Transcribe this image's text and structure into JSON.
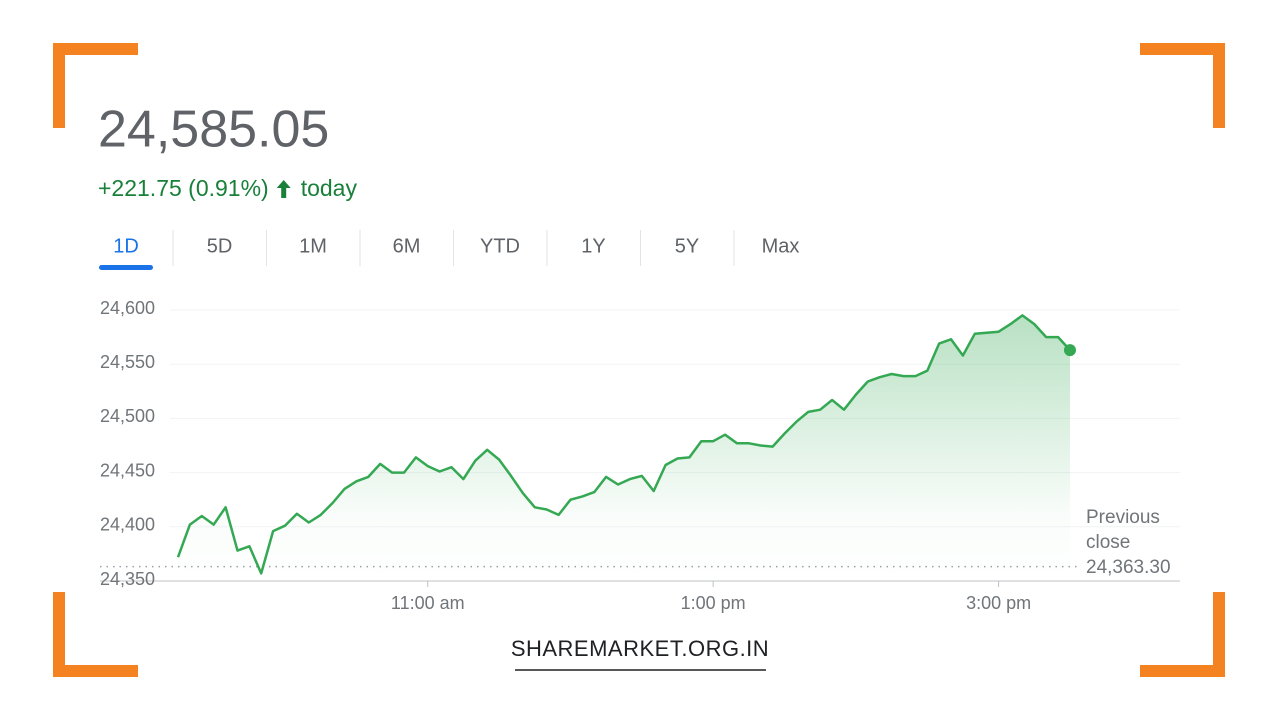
{
  "quote": {
    "price": "24,585.05",
    "change": "+221.75 (0.91%)",
    "period_label": "today"
  },
  "tabs": {
    "items": [
      "1D",
      "5D",
      "1M",
      "6M",
      "YTD",
      "1Y",
      "5Y",
      "Max"
    ],
    "active": 0
  },
  "chart_data": {
    "type": "line",
    "x": [
      9.25,
      9.3333,
      9.4167,
      9.5,
      9.5833,
      9.6667,
      9.75,
      9.8333,
      9.9167,
      10,
      10.0833,
      10.1667,
      10.25,
      10.3333,
      10.4167,
      10.5,
      10.5833,
      10.6667,
      10.75,
      10.8333,
      10.9167,
      11,
      11.0833,
      11.1667,
      11.25,
      11.3333,
      11.4167,
      11.5,
      11.5833,
      11.6667,
      11.75,
      11.8333,
      11.9167,
      12,
      12.0833,
      12.1667,
      12.25,
      12.3333,
      12.4167,
      12.5,
      12.5833,
      12.6667,
      12.75,
      12.8333,
      12.9167,
      13,
      13.0833,
      13.1667,
      13.25,
      13.3333,
      13.4167,
      13.5,
      13.5833,
      13.6667,
      13.75,
      13.8333,
      13.9167,
      14,
      14.0833,
      14.1667,
      14.25,
      14.3333,
      14.4167,
      14.5,
      14.5833,
      14.6667,
      14.75,
      14.8333,
      14.9167,
      15,
      15.0833,
      15.1667,
      15.25,
      15.3333,
      15.4167,
      15.5
    ],
    "series": [
      {
        "color": "#34a853",
        "values": [
          24372,
          24402,
          24410,
          24402,
          24418,
          24378,
          24382,
          24357,
          24396,
          24401,
          24412,
          24404,
          24411,
          24422,
          24435,
          24442,
          24446,
          24458,
          24450,
          24450,
          24464,
          24456,
          24451,
          24455,
          24444,
          24461,
          24471,
          24462,
          24447,
          24431,
          24418,
          24416,
          24411,
          24425,
          24428,
          24432,
          24446,
          24439,
          24444,
          24447,
          24433,
          24457,
          24463,
          24464,
          24479,
          24479,
          24485,
          24477,
          24477,
          24475,
          24474,
          24486,
          24497,
          24506,
          24508,
          24517,
          24508,
          24522,
          24534,
          24538,
          24541,
          24539,
          24539,
          24544,
          24569,
          24573,
          24558,
          24578,
          24579,
          24580,
          24587,
          24595,
          24587,
          24575,
          24575,
          24563
        ]
      }
    ],
    "xlim": [
      9.25,
      16.25
    ],
    "xticks": [
      {
        "value": 11,
        "label": "11:00 am"
      },
      {
        "value": 13,
        "label": "1:00 pm"
      },
      {
        "value": 15,
        "label": "3:00 pm"
      }
    ],
    "ylim": [
      24350,
      24600
    ],
    "yticks": [
      {
        "value": 24350,
        "label": "24,350"
      },
      {
        "value": 24400,
        "label": "24,400"
      },
      {
        "value": 24450,
        "label": "24,450"
      },
      {
        "value": 24500,
        "label": "24,500"
      },
      {
        "value": 24550,
        "label": "24,550"
      },
      {
        "value": 24600,
        "label": "24,600"
      }
    ],
    "grid": true,
    "reference_line": {
      "text": [
        "Previous",
        "close"
      ],
      "value": 24363.3,
      "label": "24,363.30"
    }
  },
  "footer": {
    "brand": "SHAREMARKET.ORG.IN"
  }
}
